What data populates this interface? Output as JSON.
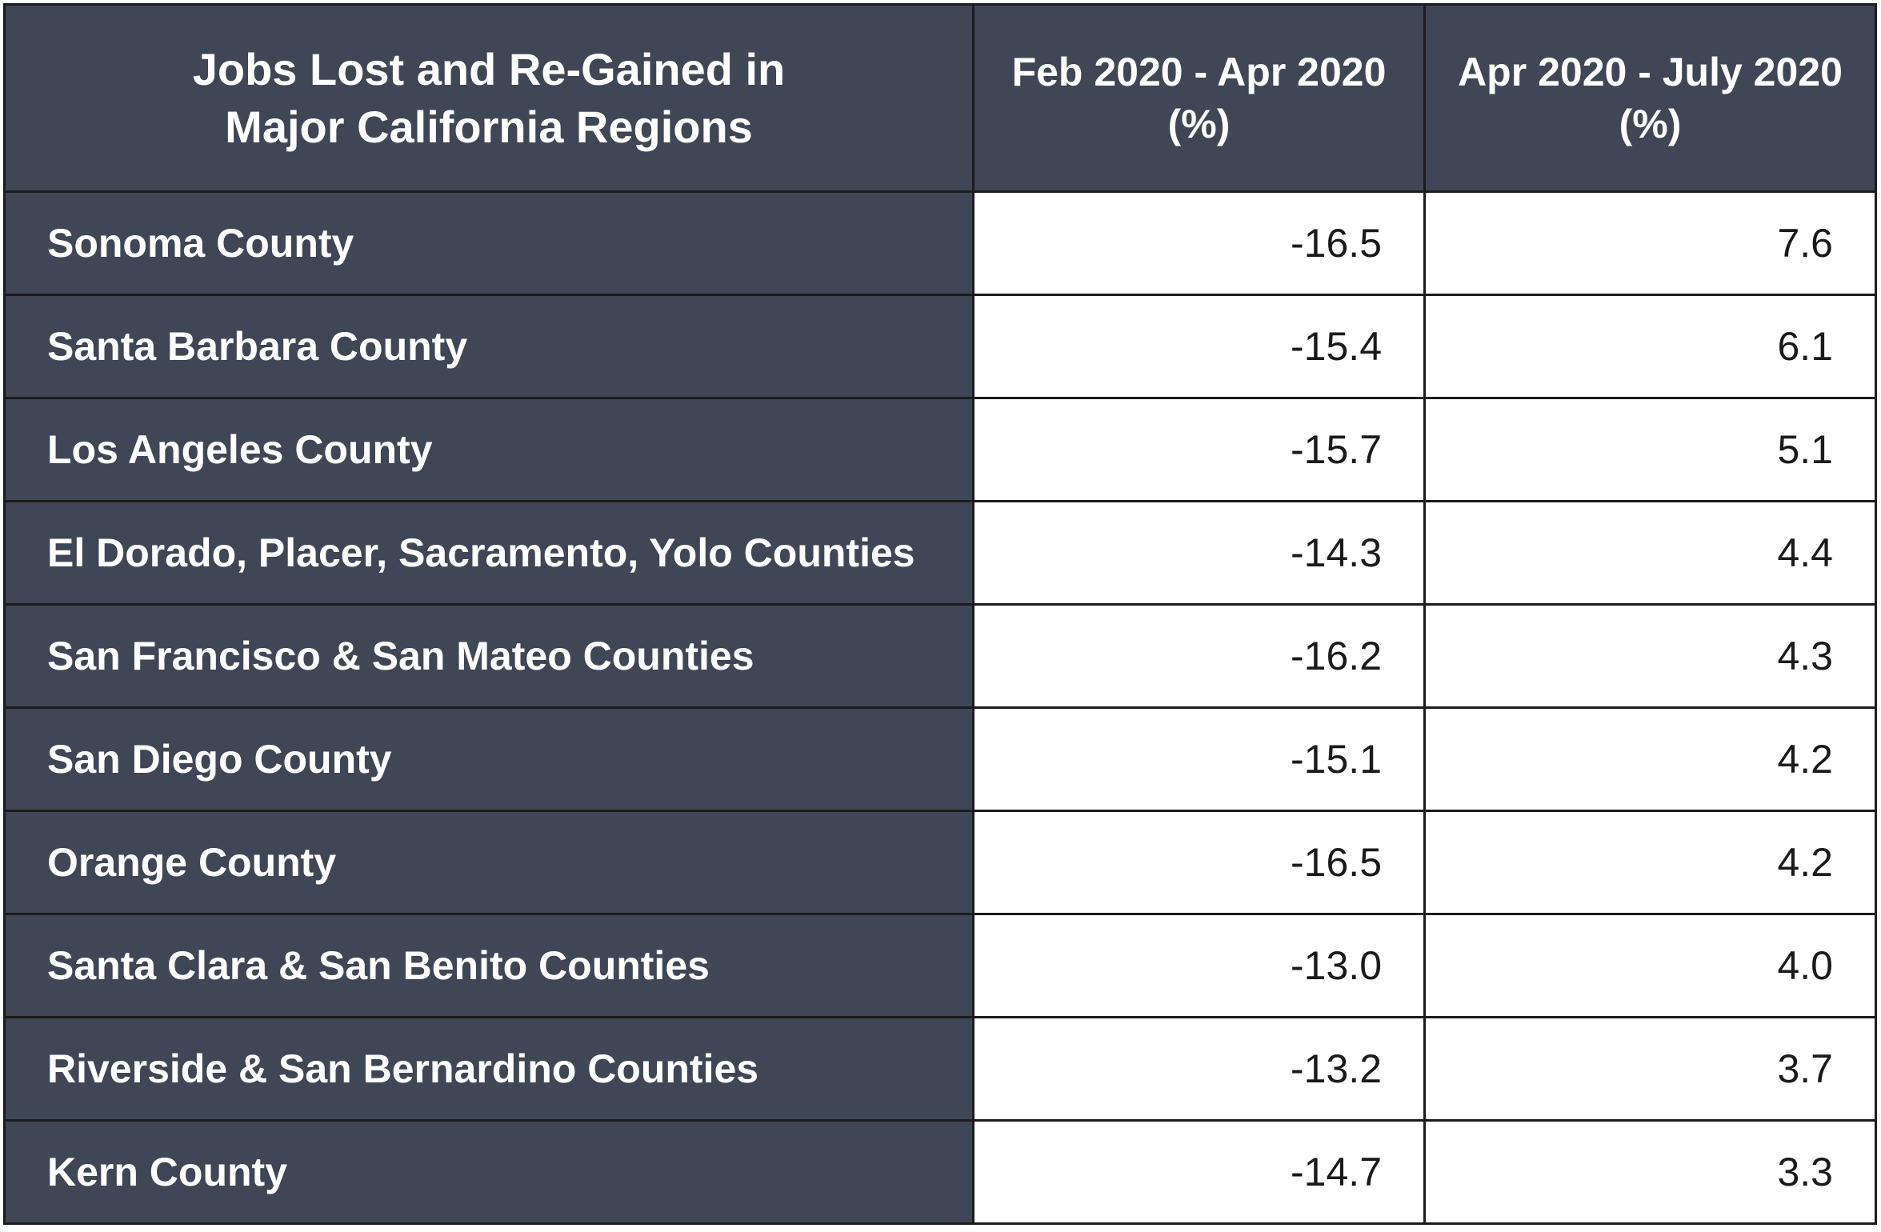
{
  "table": {
    "header": {
      "region_line1": "Jobs Lost and Re-Gained in",
      "region_line2": "Major California Regions",
      "col_a_line1": "Feb 2020 - Apr 2020",
      "col_a_line2": "(%)",
      "col_b_line1": "Apr 2020 - July 2020",
      "col_b_line2": "(%)"
    },
    "rows": [
      {
        "region": "Sonoma County",
        "feb_apr": "-16.5",
        "apr_jul": "7.6"
      },
      {
        "region": "Santa Barbara County",
        "feb_apr": "-15.4",
        "apr_jul": "6.1"
      },
      {
        "region": "Los Angeles County",
        "feb_apr": "-15.7",
        "apr_jul": "5.1"
      },
      {
        "region": "El Dorado, Placer, Sacramento, Yolo Counties",
        "feb_apr": "-14.3",
        "apr_jul": "4.4"
      },
      {
        "region": "San Francisco & San Mateo Counties",
        "feb_apr": "-16.2",
        "apr_jul": "4.3"
      },
      {
        "region": "San Diego County",
        "feb_apr": "-15.1",
        "apr_jul": "4.2"
      },
      {
        "region": "Orange County",
        "feb_apr": "-16.5",
        "apr_jul": "4.2"
      },
      {
        "region": "Santa Clara & San Benito Counties",
        "feb_apr": "-13.0",
        "apr_jul": "4.0"
      },
      {
        "region": "Riverside & San Bernardino Counties",
        "feb_apr": "-13.2",
        "apr_jul": "3.7"
      },
      {
        "region": "Kern County",
        "feb_apr": "-14.7",
        "apr_jul": "3.3"
      }
    ],
    "colors": {
      "header_bg": "#3f4655",
      "cell_bg": "#ffffff",
      "border": "#1c1c1c"
    }
  }
}
